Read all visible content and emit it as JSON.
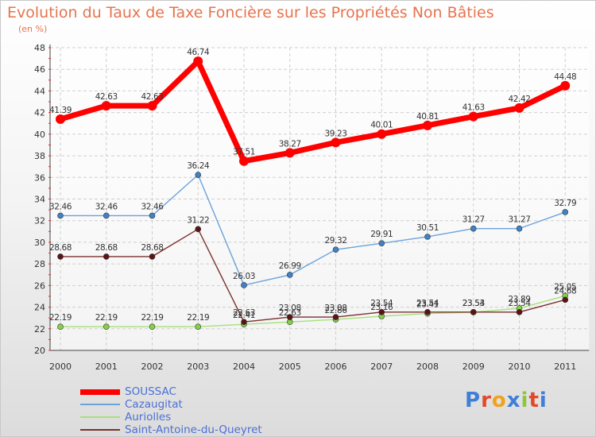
{
  "chart_data": {
    "type": "line",
    "title": "Evolution du Taux de Taxe Foncière sur les Propriétés Non Bâties",
    "subtitle": "(en %)",
    "xlabel": "",
    "ylabel": "",
    "categories": [
      "2000",
      "2001",
      "2002",
      "2003",
      "2004",
      "2005",
      "2006",
      "2007",
      "2008",
      "2009",
      "2010",
      "2011"
    ],
    "ylim": [
      20,
      48
    ],
    "yticks": [
      20,
      22,
      24,
      26,
      28,
      30,
      32,
      34,
      36,
      38,
      40,
      42,
      44,
      46,
      48
    ],
    "grid": true,
    "legend_position": "bottom-left",
    "series": [
      {
        "name": "SOUSSAC",
        "color": "#ff0000",
        "thick": true,
        "values": [
          41.39,
          42.63,
          42.63,
          46.74,
          37.51,
          38.27,
          39.23,
          40.01,
          40.81,
          41.63,
          42.42,
          44.48
        ],
        "labels": [
          "41.39",
          "42.63",
          "42.63",
          "46.74",
          "37.51",
          "38.27",
          "39.23",
          "40.01",
          "40.81",
          "41.63",
          "42.42",
          "44.48"
        ]
      },
      {
        "name": "Cazaugitat",
        "color": "#6ba3da",
        "marker": "#3f82c7",
        "thick": false,
        "values": [
          32.46,
          32.46,
          32.46,
          36.24,
          26.03,
          26.99,
          29.32,
          29.91,
          30.51,
          31.27,
          31.27,
          32.79
        ],
        "labels": [
          "32.46",
          "32.46",
          "32.46",
          "36.24",
          "26.03",
          "26.99",
          "29.32",
          "29.91",
          "30.51",
          "31.27",
          "31.27",
          "32.79"
        ]
      },
      {
        "name": "Auriolles",
        "color": "#a8e07a",
        "marker": "#86cf4a",
        "thick": false,
        "values": [
          22.19,
          22.19,
          22.19,
          22.19,
          22.41,
          22.63,
          22.86,
          23.16,
          23.41,
          23.53,
          23.89,
          25.05
        ],
        "labels": [
          "22.19",
          "22.19",
          "22.19",
          "22.19",
          "22.41",
          "22.63",
          "22.86",
          "23.16",
          "23.41",
          "23.53",
          "23.89",
          "25.05"
        ]
      },
      {
        "name": "Saint-Antoine-du-Queyret",
        "color": "#7a3030",
        "marker": "#5a1414",
        "thick": false,
        "values": [
          28.68,
          28.68,
          28.68,
          31.22,
          22.63,
          23.08,
          23.08,
          23.54,
          23.54,
          23.54,
          23.54,
          24.68
        ],
        "labels": [
          "28.68",
          "28.68",
          "28.68",
          "31.22",
          "22.63",
          "23.08",
          "23.08",
          "23.54",
          "23.54",
          "23.54",
          "23.54",
          "24.68"
        ]
      }
    ]
  },
  "brand": {
    "letters": [
      {
        "ch": "P",
        "color": "#3f7fd6"
      },
      {
        "ch": "r",
        "color": "#e04a2a"
      },
      {
        "ch": "o",
        "color": "#f0a21a"
      },
      {
        "ch": "x",
        "color": "#3f7fd6"
      },
      {
        "ch": "i",
        "color": "#8dc63f"
      },
      {
        "ch": "t",
        "color": "#e04a2a"
      },
      {
        "ch": "i",
        "color": "#3f7fd6"
      }
    ]
  }
}
